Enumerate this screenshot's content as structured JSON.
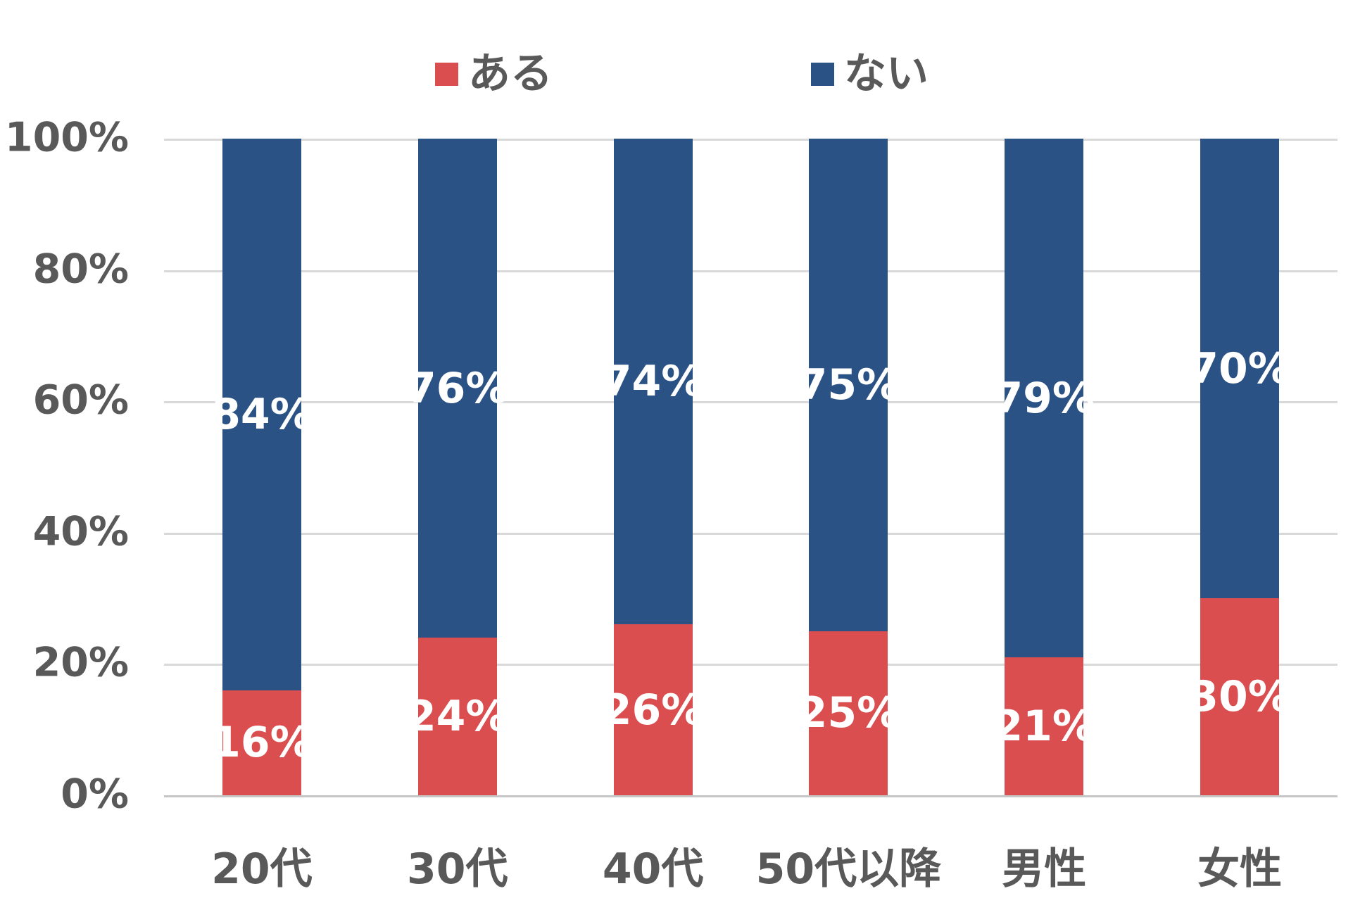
{
  "chart_data": {
    "type": "bar",
    "stacked": true,
    "orientation": "vertical",
    "categories": [
      "20代",
      "30代",
      "40代",
      "50代以降",
      "男性",
      "女性"
    ],
    "series": [
      {
        "name": "ある",
        "color": "#DA4E50",
        "values": [
          16,
          24,
          26,
          25,
          21,
          30
        ]
      },
      {
        "name": "ない",
        "color": "#2B5285",
        "values": [
          84,
          76,
          74,
          75,
          79,
          70
        ]
      }
    ],
    "value_label_suffix": "%",
    "y_ticks": [
      "0%",
      "20%",
      "40%",
      "60%",
      "80%",
      "100%"
    ],
    "ylim": [
      0,
      100
    ],
    "grid": true,
    "legend_position": "top",
    "title": ""
  },
  "colors": {
    "axis_text": "#595959",
    "gridline": "#D9D9D9",
    "axis_line": "#C6C6C6",
    "data_label_text": "#FFFFFF",
    "background": "#FFFFFF"
  }
}
